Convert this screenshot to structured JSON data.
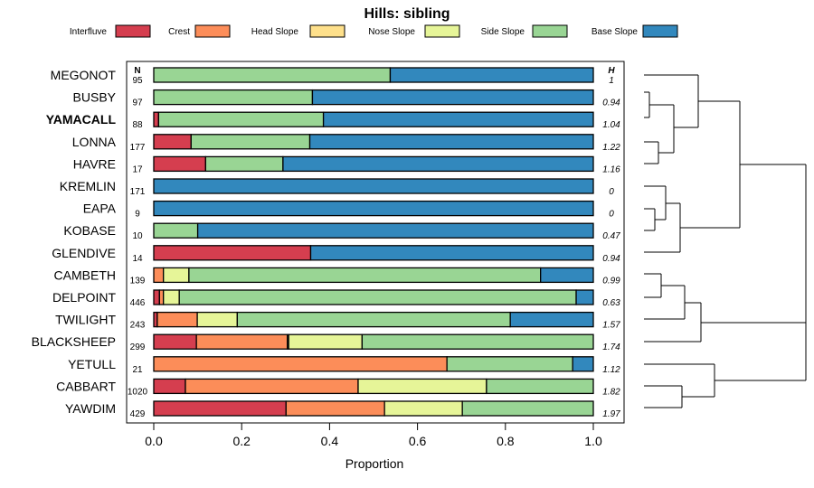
{
  "chart_data": {
    "type": "bar",
    "stacked": true,
    "orientation": "horizontal",
    "title": "Hills: sibling",
    "xlabel": "Proportion",
    "xlim": [
      0,
      1
    ],
    "x_ticks": [
      "0.0",
      "0.2",
      "0.4",
      "0.6",
      "0.8",
      "1.0"
    ],
    "n_header": "N",
    "h_header": "H",
    "bold_category": "YAMACALL",
    "series": [
      {
        "name": "Interfluve",
        "color": "#D53E4F"
      },
      {
        "name": "Crest",
        "color": "#FC8D59"
      },
      {
        "name": "Head Slope",
        "color": "#FEE08B"
      },
      {
        "name": "Nose Slope",
        "color": "#E6F598"
      },
      {
        "name": "Side Slope",
        "color": "#99D594"
      },
      {
        "name": "Base Slope",
        "color": "#3288BD"
      }
    ],
    "rows": [
      {
        "label": "MEGONOT",
        "n": "95",
        "h": "1",
        "values": [
          0,
          0,
          0,
          0,
          0.538,
          0.462
        ]
      },
      {
        "label": "BUSBY",
        "n": "97",
        "h": "0.94",
        "values": [
          0,
          0,
          0,
          0,
          0.361,
          0.639
        ]
      },
      {
        "label": "YAMACALL",
        "n": "88",
        "h": "1.04",
        "values": [
          0.011,
          0,
          0,
          0,
          0.375,
          0.614
        ]
      },
      {
        "label": "LONNA",
        "n": "177",
        "h": "1.22",
        "values": [
          0.085,
          0,
          0,
          0,
          0.27,
          0.645
        ]
      },
      {
        "label": "HAVRE",
        "n": "17",
        "h": "1.16",
        "values": [
          0.118,
          0,
          0,
          0,
          0.176,
          0.706
        ]
      },
      {
        "label": "KREMLIN",
        "n": "171",
        "h": "0",
        "values": [
          0,
          0,
          0,
          0,
          0,
          1
        ]
      },
      {
        "label": "EAPA",
        "n": "9",
        "h": "0",
        "values": [
          0,
          0,
          0,
          0,
          0,
          1
        ]
      },
      {
        "label": "KOBASE",
        "n": "10",
        "h": "0.47",
        "values": [
          0,
          0,
          0,
          0,
          0.1,
          0.9
        ]
      },
      {
        "label": "GLENDIVE",
        "n": "14",
        "h": "0.94",
        "values": [
          0.357,
          0,
          0,
          0,
          0,
          0.643
        ]
      },
      {
        "label": "CAMBETH",
        "n": "139",
        "h": "0.99",
        "values": [
          0,
          0.022,
          0,
          0.058,
          0.8,
          0.12
        ]
      },
      {
        "label": "DELPOINT",
        "n": "446",
        "h": "0.63",
        "values": [
          0.013,
          0.009,
          0,
          0.036,
          0.903,
          0.039
        ]
      },
      {
        "label": "TWILIGHT",
        "n": "243",
        "h": "1.57",
        "values": [
          0.008,
          0.091,
          0,
          0.091,
          0.621,
          0.189
        ]
      },
      {
        "label": "BLACKSHEEP",
        "n": "299",
        "h": "1.74",
        "values": [
          0.097,
          0.207,
          0.003,
          0.167,
          0.526,
          0
        ]
      },
      {
        "label": "YETULL",
        "n": "21",
        "h": "1.12",
        "values": [
          0,
          0.667,
          0,
          0,
          0.286,
          0.047
        ]
      },
      {
        "label": "CABBART",
        "n": "1020",
        "h": "1.82",
        "values": [
          0.072,
          0.393,
          0,
          0.292,
          0.243,
          0
        ]
      },
      {
        "label": "YAWDIM",
        "n": "429",
        "h": "1.97",
        "values": [
          0.301,
          0.224,
          0,
          0.177,
          0.298,
          0
        ]
      }
    ]
  }
}
